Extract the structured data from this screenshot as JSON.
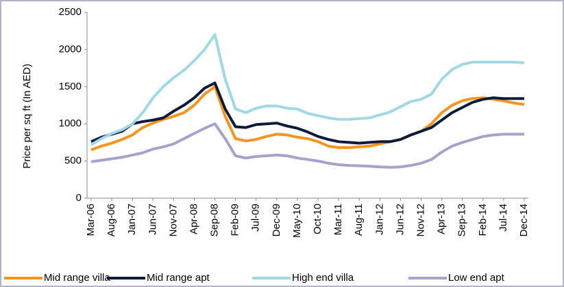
{
  "chart_data": {
    "type": "line",
    "y_label": "Price per sq ft (In AED)",
    "categories": [
      "Mar-06",
      null,
      "Aug-06",
      null,
      "Jan-07",
      null,
      "Jun-07",
      null,
      "Nov-07",
      null,
      "Apr-08",
      null,
      "Sep-08",
      null,
      "Feb-09",
      null,
      "Jul-09",
      null,
      "Dec-09",
      null,
      "May-10",
      null,
      "Oct-10",
      null,
      "Mar-11",
      null,
      "Aug-11",
      null,
      "Jan-12",
      null,
      "Jun-12",
      null,
      "Nov-12",
      null,
      "Apr-13",
      null,
      "Sep-13",
      null,
      "Feb-14",
      null,
      "Jul-14",
      null,
      "Dec-14"
    ],
    "ylim": [
      0,
      2500
    ],
    "yticks": [
      0,
      500,
      1000,
      1500,
      2000,
      2500
    ],
    "legend": "bottom",
    "series": [
      {
        "name": "Mid range villa",
        "color": "#f7941d",
        "values": [
          650,
          700,
          740,
          790,
          850,
          950,
          1010,
          1060,
          1100,
          1150,
          1250,
          1400,
          1500,
          1100,
          800,
          770,
          790,
          830,
          860,
          850,
          820,
          800,
          760,
          700,
          680,
          680,
          690,
          700,
          730,
          760,
          790,
          850,
          900,
          1000,
          1150,
          1250,
          1310,
          1340,
          1350,
          1330,
          1310,
          1280,
          1260
        ]
      },
      {
        "name": "Mid range apt",
        "color": "#0b1a3d",
        "values": [
          760,
          820,
          860,
          900,
          1000,
          1030,
          1050,
          1080,
          1170,
          1250,
          1350,
          1480,
          1550,
          1200,
          960,
          950,
          990,
          1000,
          1010,
          970,
          940,
          890,
          830,
          790,
          760,
          750,
          740,
          750,
          760,
          760,
          790,
          850,
          900,
          950,
          1050,
          1150,
          1220,
          1290,
          1330,
          1350,
          1340,
          1340,
          1340
        ]
      },
      {
        "name": "High end villa",
        "color": "#9fd9e6",
        "values": [
          720,
          800,
          870,
          920,
          1000,
          1150,
          1350,
          1500,
          1620,
          1720,
          1850,
          2000,
          2200,
          1600,
          1200,
          1150,
          1210,
          1240,
          1240,
          1210,
          1200,
          1140,
          1110,
          1080,
          1060,
          1060,
          1070,
          1080,
          1120,
          1160,
          1230,
          1300,
          1330,
          1400,
          1600,
          1730,
          1800,
          1830,
          1830,
          1830,
          1830,
          1830,
          1820
        ]
      },
      {
        "name": "Low end apt",
        "color": "#a3a3cc",
        "values": [
          490,
          510,
          530,
          550,
          580,
          610,
          660,
          690,
          730,
          800,
          870,
          940,
          1000,
          800,
          570,
          540,
          560,
          570,
          580,
          570,
          540,
          520,
          500,
          470,
          450,
          440,
          435,
          430,
          420,
          415,
          420,
          440,
          470,
          520,
          620,
          700,
          750,
          790,
          830,
          850,
          860,
          860,
          860
        ]
      }
    ]
  }
}
